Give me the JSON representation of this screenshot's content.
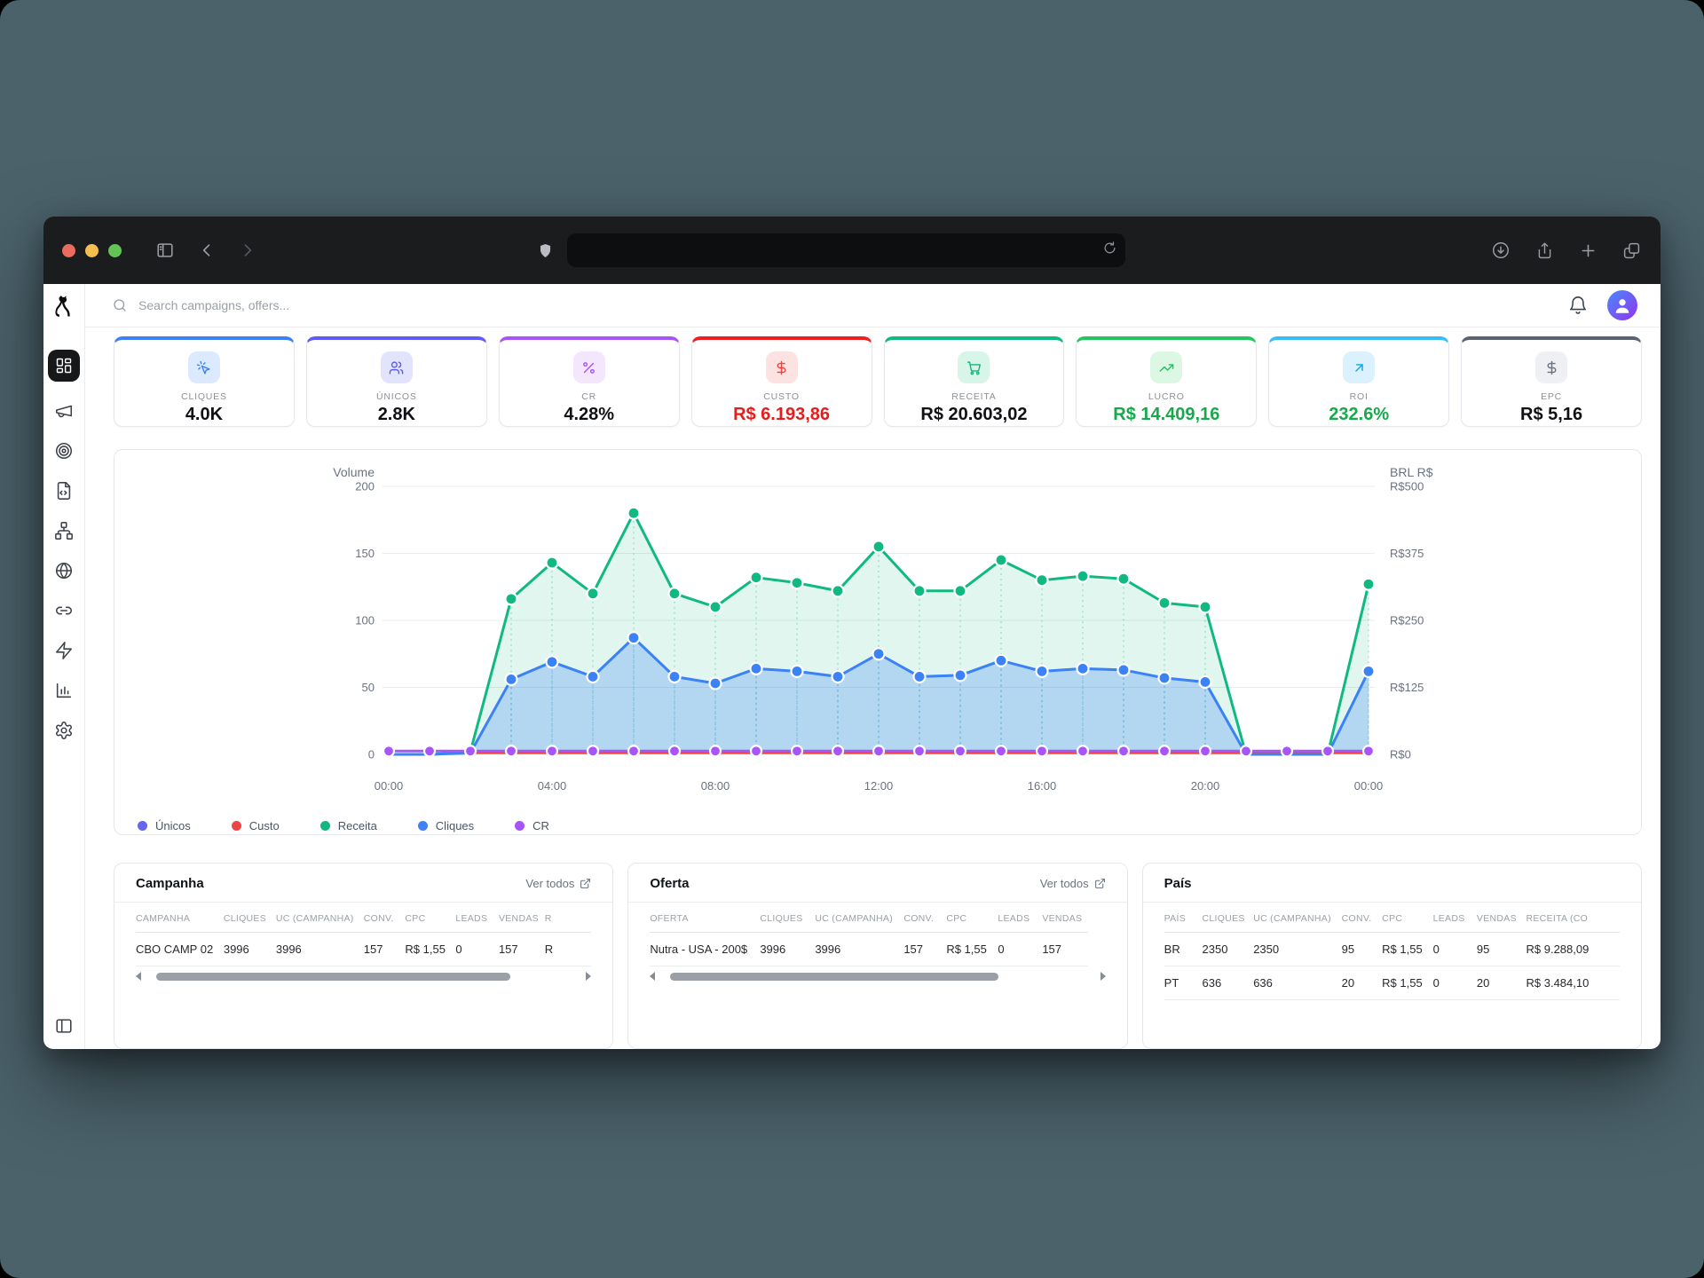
{
  "browser": {
    "url_value": "",
    "toolbar_icons": [
      "sidebar-toggle",
      "back",
      "forward",
      "shield",
      "reload",
      "download",
      "share",
      "new-tab",
      "tab-overview"
    ]
  },
  "app": {
    "logo": "dog",
    "search_placeholder": "Search campaigns, offers...",
    "sidebar_items": [
      "dashboard",
      "campaigns",
      "targeting",
      "landing-pages",
      "flows",
      "domains",
      "links",
      "automations",
      "reports",
      "settings"
    ],
    "sidebar_bottom": "collapse-panel"
  },
  "stat_cards": [
    {
      "label": "CLIQUES",
      "value": "4.0K",
      "accent": "#3b82f6",
      "value_color": "#0f1115",
      "icon": "cursor-click",
      "icon_bg": "#dbeafe",
      "icon_color": "#3b82f6"
    },
    {
      "label": "ÚNICOS",
      "value": "2.8K",
      "accent": "#5f5af5",
      "value_color": "#0f1115",
      "icon": "users",
      "icon_bg": "#e2e4fd",
      "icon_color": "#5f5af5"
    },
    {
      "label": "CR",
      "value": "4.28%",
      "accent": "#a855f7",
      "value_color": "#0f1115",
      "icon": "percent",
      "icon_bg": "#f3e6fd",
      "icon_color": "#a855f7"
    },
    {
      "label": "CUSTO",
      "value": "R$ 6.193,86",
      "accent": "#ef1f1f",
      "value_color": "#e51d1d",
      "icon": "dollar",
      "icon_bg": "#fde2e2",
      "icon_color": "#ef4444"
    },
    {
      "label": "RECEITA",
      "value": "R$ 20.603,02",
      "accent": "#10b981",
      "value_color": "#0f1115",
      "icon": "cart",
      "icon_bg": "#d7f5e8",
      "icon_color": "#10b981"
    },
    {
      "label": "LUCRO",
      "value": "R$ 14.409,16",
      "accent": "#22c55e",
      "value_color": "#17a94c",
      "icon": "trending-up",
      "icon_bg": "#dcf8e4",
      "icon_color": "#22c55e"
    },
    {
      "label": "ROI",
      "value": "232.6%",
      "accent": "#38bdf8",
      "value_color": "#17a94c",
      "icon": "arrow-up-right",
      "icon_bg": "#dbf1fe",
      "icon_color": "#0ea5e9"
    },
    {
      "label": "EPC",
      "value": "R$ 5,16",
      "accent": "#5c6370",
      "value_color": "#0f1115",
      "icon": "dollar",
      "icon_bg": "#eef0f3",
      "icon_color": "#6b7280"
    }
  ],
  "chart_data": {
    "type": "area",
    "left_axis": {
      "title": "Volume",
      "ticks": [
        0,
        50,
        100,
        150,
        200
      ],
      "max": 200
    },
    "right_axis": {
      "title": "BRL R$",
      "ticks": [
        "R$0",
        "R$125",
        "R$250",
        "R$375",
        "R$500"
      ]
    },
    "x_labels": [
      "00:00",
      "01:00",
      "02:00",
      "03:00",
      "04:00",
      "05:00",
      "06:00",
      "07:00",
      "08:00",
      "09:00",
      "10:00",
      "11:00",
      "12:00",
      "13:00",
      "14:00",
      "15:00",
      "16:00",
      "17:00",
      "18:00",
      "19:00",
      "20:00",
      "21:00",
      "22:00",
      "23:00",
      "00:00"
    ],
    "x_tick_every": 4,
    "grid": true,
    "legend_position": "bottom-left",
    "series": [
      {
        "name": "Únicos",
        "color": "#6366f1",
        "area": false,
        "dots": false,
        "droplines": false,
        "values": [
          0,
          0,
          1,
          56,
          69,
          58,
          87,
          58,
          53,
          64,
          62,
          58,
          75,
          58,
          59,
          70,
          62,
          64,
          63,
          57,
          54,
          0,
          0,
          0,
          62
        ]
      },
      {
        "name": "Custo",
        "color": "#ef4444",
        "area": false,
        "dots": false,
        "droplines": false,
        "values": [
          0,
          0,
          1.2,
          1.2,
          1.2,
          1.2,
          1.2,
          1.2,
          1.2,
          1.2,
          1.2,
          1.2,
          1.2,
          1.2,
          1.2,
          1.2,
          1.2,
          1.2,
          1.2,
          1.2,
          1.2,
          1.2,
          1.2,
          1.2,
          1.2
        ]
      },
      {
        "name": "Receita",
        "color": "#10b981",
        "area": true,
        "dots": true,
        "droplines": true,
        "values": [
          0,
          0,
          2,
          116,
          143,
          120,
          180,
          120,
          110,
          132,
          128,
          122,
          155,
          122,
          122,
          145,
          130,
          133,
          131,
          113,
          110,
          0,
          0,
          0,
          127
        ]
      },
      {
        "name": "Cliques",
        "color": "#3b82f6",
        "area": true,
        "dots": true,
        "droplines": true,
        "values": [
          0,
          0,
          1,
          56,
          69,
          58,
          87,
          58,
          53,
          64,
          62,
          58,
          75,
          58,
          59,
          70,
          62,
          64,
          63,
          57,
          54,
          0,
          0,
          0,
          62
        ]
      },
      {
        "name": "CR",
        "color": "#a855f7",
        "area": false,
        "dots": true,
        "droplines": false,
        "values": [
          2.5,
          2.5,
          2.5,
          2.5,
          2.5,
          2.5,
          2.5,
          2.5,
          2.5,
          2.5,
          2.5,
          2.5,
          2.5,
          2.5,
          2.5,
          2.5,
          2.5,
          2.5,
          2.5,
          2.5,
          2.5,
          2.5,
          2.5,
          2.5,
          2.5
        ]
      }
    ]
  },
  "tables": [
    {
      "title": "Campanha",
      "link": "Ver todos",
      "columns": [
        "CAMPANHA",
        "CLIQUES",
        "UC (CAMPANHA)",
        "CONV.",
        "CPC",
        "LEADS",
        "VENDAS",
        "R"
      ],
      "rows": [
        [
          "CBO CAMP 02",
          "3996",
          "3996",
          "157",
          "R$ 1,55",
          "0",
          "157",
          "R"
        ]
      ],
      "scrollbar": true
    },
    {
      "title": "Oferta",
      "link": "Ver todos",
      "columns": [
        "OFERTA",
        "CLIQUES",
        "UC (CAMPANHA)",
        "CONV.",
        "CPC",
        "LEADS",
        "VENDAS"
      ],
      "rows": [
        [
          "Nutra - USA - 200$",
          "3996",
          "3996",
          "157",
          "R$ 1,55",
          "0",
          "157"
        ]
      ],
      "scrollbar": true
    },
    {
      "title": "País",
      "link": null,
      "columns": [
        "PAÍS",
        "CLIQUES",
        "UC (CAMPANHA)",
        "CONV.",
        "CPC",
        "LEADS",
        "VENDAS",
        "RECEITA (CO"
      ],
      "rows": [
        [
          "BR",
          "2350",
          "2350",
          "95",
          "R$ 1,55",
          "0",
          "95",
          "R$ 9.288,09"
        ],
        [
          "PT",
          "636",
          "636",
          "20",
          "R$ 1,55",
          "0",
          "20",
          "R$ 3.484,10"
        ]
      ],
      "scrollbar": false
    }
  ]
}
